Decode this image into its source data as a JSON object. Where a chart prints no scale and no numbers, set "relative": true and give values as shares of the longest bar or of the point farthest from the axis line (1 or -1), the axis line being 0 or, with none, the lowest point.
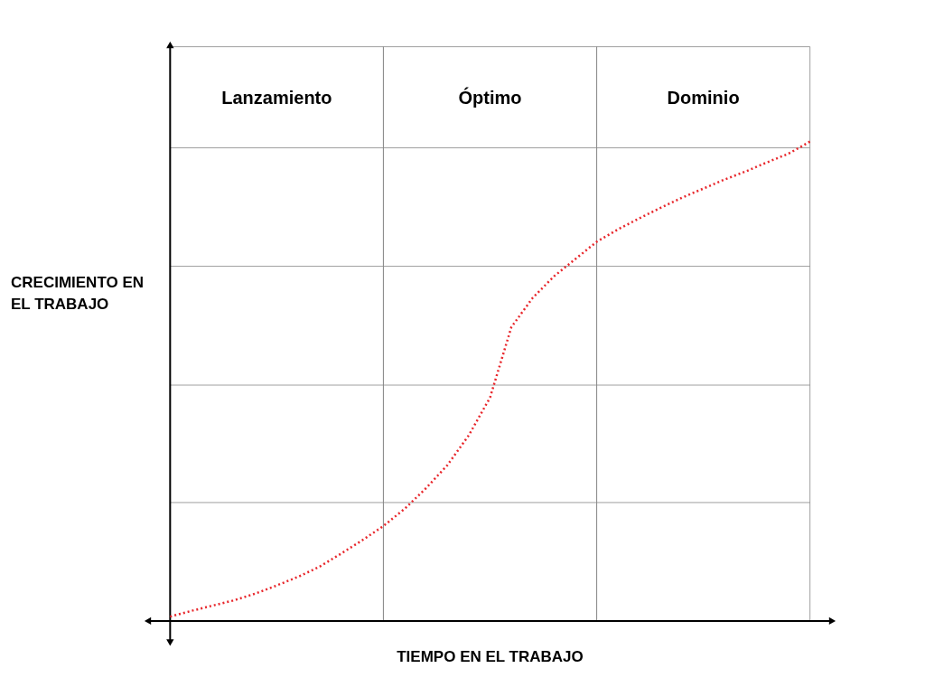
{
  "chart_data": {
    "type": "line",
    "relative": true,
    "xlabel": "TIEMPO EN EL TRABAJO",
    "ylabel": "CRECIMIENTO EN EL TRABAJO",
    "line_style": "dotted",
    "categories": [
      null,
      null,
      null,
      null,
      null,
      null,
      null,
      null,
      null,
      null,
      null,
      null,
      null,
      null,
      null,
      null,
      null,
      null,
      null,
      null,
      null,
      null,
      null,
      null,
      null,
      null,
      null,
      null,
      null,
      null,
      null
    ],
    "series": [
      {
        "color": "#e8262b",
        "values": [
          0.009,
          0.021,
          0.032,
          0.043,
          0.057,
          0.074,
          0.092,
          0.113,
          0.14,
          0.168,
          0.198,
          0.234,
          0.277,
          0.325,
          0.387,
          0.466,
          0.613,
          0.674,
          0.719,
          0.755,
          0.791,
          0.817,
          0.84,
          0.862,
          0.883,
          0.902,
          0.921,
          0.938,
          0.957,
          0.975,
          1.0
        ]
      }
    ],
    "ref_lines": [
      {
        "axis": "y",
        "value": 0.247,
        "color": "#888888"
      },
      {
        "axis": "y",
        "value": 0.492,
        "color": "#888888"
      },
      {
        "axis": "y",
        "value": 0.74,
        "color": "#888888"
      },
      {
        "axis": "y",
        "value": 0.987,
        "color": "#888888"
      }
    ],
    "annotations": [
      "Lanzamiento",
      "Óptimo",
      "Dominio"
    ]
  }
}
